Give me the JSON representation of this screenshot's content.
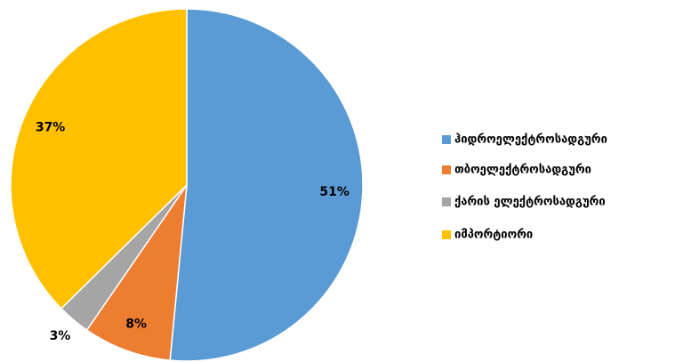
{
  "chart_data": {
    "type": "pie",
    "categories": [
      "ჰიდროელექტროსადგური",
      "თბოელექტროსადგური",
      "ქარის ელექტროსადგური",
      "იმპორტიორი"
    ],
    "values": [
      51,
      8,
      3,
      37
    ],
    "value_labels": [
      "51%",
      "8%",
      "3%",
      "37%"
    ],
    "colors": [
      "#5b9bd5",
      "#ed7d31",
      "#a5a5a5",
      "#ffc000"
    ],
    "legend": "right"
  }
}
